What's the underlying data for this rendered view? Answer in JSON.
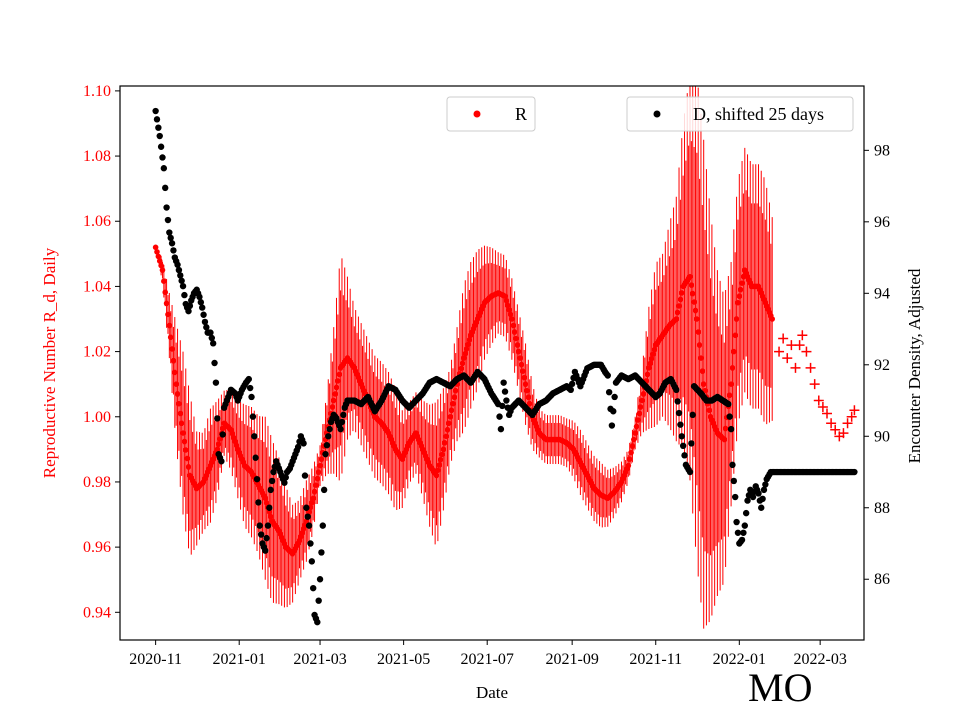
{
  "chart_data": {
    "type": "scatter",
    "xlabel": "Date",
    "y_left_label": "Reproductive Number R_d, Daily",
    "y_right_label": "Encounter Density, Adjusted",
    "annotation": "MO",
    "colors": {
      "R": "#ff0000",
      "D": "#000000"
    },
    "x_ticks": [
      "2020-11",
      "2021-01",
      "2021-03",
      "2021-05",
      "2021-07",
      "2021-09",
      "2021-11",
      "2022-01",
      "2022-03"
    ],
    "x_tick_days": [
      0,
      61,
      120,
      181,
      242,
      304,
      365,
      426,
      485
    ],
    "x_range_days": [
      -26,
      517
    ],
    "y_left_ticks": [
      "0.94",
      "0.96",
      "0.98",
      "1.00",
      "1.02",
      "1.04",
      "1.06",
      "1.08",
      "1.10"
    ],
    "y_left_range": [
      0.9315,
      1.1015
    ],
    "y_right_ticks": [
      "86",
      "88",
      "90",
      "92",
      "94",
      "96",
      "98"
    ],
    "y_right_range": [
      84.3,
      99.8
    ],
    "legend": {
      "R_label": "R",
      "D_label": "D, shifted 25 days"
    },
    "series": [
      {
        "name": "R",
        "axis": "left",
        "marker": "dot",
        "error_bars": true,
        "points": [
          [
            0,
            1.052,
            0
          ],
          [
            5,
            1.045,
            0.003
          ],
          [
            10,
            1.028,
            0.008
          ],
          [
            15,
            1.01,
            0.015
          ],
          [
            20,
            0.995,
            0.02
          ],
          [
            25,
            0.982,
            0.02
          ],
          [
            30,
            0.978,
            0.014
          ],
          [
            35,
            0.98,
            0.012
          ],
          [
            40,
            0.985,
            0.014
          ],
          [
            45,
            0.99,
            0.012
          ],
          [
            50,
            0.998,
            0.008
          ],
          [
            55,
            0.996,
            0.01
          ],
          [
            60,
            0.99,
            0.012
          ],
          [
            65,
            0.985,
            0.015
          ],
          [
            70,
            0.983,
            0.016
          ],
          [
            75,
            0.979,
            0.017
          ],
          [
            80,
            0.975,
            0.02
          ],
          [
            85,
            0.968,
            0.02
          ],
          [
            90,
            0.965,
            0.018
          ],
          [
            95,
            0.96,
            0.015
          ],
          [
            100,
            0.958,
            0.012
          ],
          [
            105,
            0.962,
            0.01
          ],
          [
            110,
            0.968,
            0.01
          ],
          [
            115,
            0.975,
            0.008
          ],
          [
            120,
            0.985,
            0.005
          ],
          [
            125,
            0.995,
            0.01
          ],
          [
            130,
            1.005,
            0.018
          ],
          [
            135,
            1.015,
            0.028
          ],
          [
            140,
            1.018,
            0.02
          ],
          [
            145,
            1.015,
            0.015
          ],
          [
            150,
            1.01,
            0.015
          ],
          [
            155,
            1.005,
            0.015
          ],
          [
            160,
            1.0,
            0.015
          ],
          [
            165,
            0.998,
            0.015
          ],
          [
            170,
            0.995,
            0.015
          ],
          [
            175,
            0.99,
            0.015
          ],
          [
            180,
            0.987,
            0.012
          ],
          [
            185,
            0.992,
            0.01
          ],
          [
            190,
            0.995,
            0.01
          ],
          [
            195,
            0.99,
            0.012
          ],
          [
            200,
            0.985,
            0.015
          ],
          [
            205,
            0.982,
            0.018
          ],
          [
            210,
            0.99,
            0.015
          ],
          [
            215,
            1.0,
            0.012
          ],
          [
            220,
            1.01,
            0.014
          ],
          [
            225,
            1.018,
            0.018
          ],
          [
            230,
            1.025,
            0.018
          ],
          [
            235,
            1.03,
            0.017
          ],
          [
            240,
            1.035,
            0.014
          ],
          [
            245,
            1.037,
            0.012
          ],
          [
            250,
            1.038,
            0.01
          ],
          [
            255,
            1.037,
            0.01
          ],
          [
            260,
            1.03,
            0.01
          ],
          [
            265,
            1.02,
            0.01
          ],
          [
            270,
            1.01,
            0.01
          ],
          [
            275,
            1.0,
            0.008
          ],
          [
            280,
            0.995,
            0.006
          ],
          [
            285,
            0.993,
            0.006
          ],
          [
            290,
            0.993,
            0.006
          ],
          [
            295,
            0.993,
            0.006
          ],
          [
            300,
            0.992,
            0.006
          ],
          [
            305,
            0.99,
            0.007
          ],
          [
            310,
            0.986,
            0.008
          ],
          [
            315,
            0.982,
            0.008
          ],
          [
            320,
            0.978,
            0.008
          ],
          [
            325,
            0.976,
            0.008
          ],
          [
            330,
            0.975,
            0.007
          ],
          [
            335,
            0.977,
            0.006
          ],
          [
            340,
            0.98,
            0.005
          ],
          [
            345,
            0.985,
            0.004
          ],
          [
            350,
            0.995,
            0.004
          ],
          [
            355,
            1.005,
            0.008
          ],
          [
            360,
            1.015,
            0.015
          ],
          [
            365,
            1.022,
            0.02
          ],
          [
            370,
            1.025,
            0.02
          ],
          [
            375,
            1.028,
            0.025
          ],
          [
            380,
            1.03,
            0.03
          ],
          [
            385,
            1.04,
            0.04
          ],
          [
            390,
            1.043,
            0.05
          ],
          [
            395,
            1.03,
            0.06
          ],
          [
            400,
            1.01,
            0.06
          ],
          [
            405,
            1.0,
            0.05
          ],
          [
            410,
            0.995,
            0.04
          ],
          [
            415,
            0.993,
            0.035
          ],
          [
            420,
            1.01,
            0.03
          ],
          [
            425,
            1.035,
            0.03
          ],
          [
            430,
            1.045,
            0.03
          ],
          [
            435,
            1.04,
            0.03
          ],
          [
            440,
            1.04,
            0.03
          ],
          [
            445,
            1.035,
            0.03
          ],
          [
            450,
            1.03,
            0.025
          ]
        ],
        "plus_points": [
          [
            455,
            1.02
          ],
          [
            458,
            1.024
          ],
          [
            461,
            1.018
          ],
          [
            464,
            1.022
          ],
          [
            467,
            1.015
          ],
          [
            470,
            1.022
          ],
          [
            472,
            1.025
          ],
          [
            475,
            1.02
          ],
          [
            478,
            1.015
          ],
          [
            481,
            1.01
          ],
          [
            484,
            1.005
          ],
          [
            487,
            1.003
          ],
          [
            490,
            1.001
          ],
          [
            493,
            0.998
          ],
          [
            496,
            0.996
          ],
          [
            499,
            0.994
          ],
          [
            502,
            0.995
          ],
          [
            505,
            0.998
          ],
          [
            508,
            1.0
          ],
          [
            510,
            1.002
          ]
        ]
      },
      {
        "name": "D, shifted 25 days",
        "axis": "right",
        "marker": "dot",
        "points": [
          [
            0,
            99.1
          ],
          [
            3,
            98.4
          ],
          [
            6,
            97.5
          ],
          [
            8,
            96.4
          ],
          [
            10,
            95.7
          ],
          [
            12,
            95.4
          ],
          [
            14,
            95.0
          ],
          [
            16,
            94.8
          ],
          [
            18,
            94.5
          ],
          [
            20,
            94.2
          ],
          [
            22,
            93.7
          ],
          [
            24,
            93.5
          ],
          [
            26,
            93.8
          ],
          [
            28,
            94.0
          ],
          [
            30,
            94.1
          ],
          [
            32,
            93.9
          ],
          [
            34,
            93.6
          ],
          [
            36,
            93.2
          ],
          [
            38,
            92.9
          ],
          [
            40,
            92.9
          ],
          [
            42,
            92.6
          ],
          [
            44,
            91.5
          ],
          [
            46,
            89.5
          ],
          [
            48,
            89.3
          ],
          [
            50,
            90.8
          ],
          [
            52,
            91.0
          ],
          [
            55,
            91.3
          ],
          [
            58,
            91.2
          ],
          [
            60,
            91.0
          ],
          [
            63,
            91.3
          ],
          [
            66,
            91.5
          ],
          [
            68,
            91.6
          ],
          [
            70,
            91.1
          ],
          [
            72,
            90.0
          ],
          [
            74,
            88.8
          ],
          [
            76,
            87.5
          ],
          [
            78,
            87.0
          ],
          [
            80,
            86.8
          ],
          [
            82,
            87.5
          ],
          [
            84,
            88.5
          ],
          [
            86,
            89.0
          ],
          [
            88,
            89.3
          ],
          [
            90,
            89.1
          ],
          [
            92,
            88.9
          ],
          [
            94,
            88.7
          ],
          [
            96,
            89.0
          ],
          [
            98,
            89.1
          ],
          [
            100,
            89.3
          ],
          [
            102,
            89.5
          ],
          [
            104,
            89.7
          ],
          [
            106,
            90.0
          ],
          [
            108,
            89.8
          ],
          [
            110,
            88.0
          ],
          [
            112,
            87.5
          ],
          [
            114,
            86.5
          ],
          [
            116,
            85.0
          ],
          [
            118,
            84.8
          ],
          [
            120,
            86.0
          ],
          [
            122,
            87.5
          ],
          [
            124,
            89.5
          ],
          [
            126,
            90.0
          ],
          [
            128,
            90.4
          ],
          [
            130,
            90.6
          ],
          [
            132,
            90.5
          ],
          [
            135,
            90.2
          ],
          [
            138,
            90.8
          ],
          [
            140,
            91.0
          ],
          [
            145,
            91.0
          ],
          [
            150,
            90.9
          ],
          [
            155,
            91.1
          ],
          [
            160,
            90.7
          ],
          [
            165,
            91.0
          ],
          [
            170,
            91.4
          ],
          [
            175,
            91.3
          ],
          [
            180,
            91.0
          ],
          [
            185,
            90.8
          ],
          [
            190,
            91.0
          ],
          [
            195,
            91.2
          ],
          [
            200,
            91.5
          ],
          [
            205,
            91.6
          ],
          [
            210,
            91.5
          ],
          [
            215,
            91.4
          ],
          [
            220,
            91.6
          ],
          [
            225,
            91.7
          ],
          [
            230,
            91.5
          ],
          [
            235,
            91.8
          ],
          [
            240,
            91.6
          ],
          [
            245,
            91.2
          ],
          [
            250,
            90.9
          ],
          [
            252,
            90.2
          ],
          [
            254,
            91.5
          ],
          [
            256,
            91.0
          ],
          [
            258,
            90.6
          ],
          [
            260,
            90.8
          ],
          [
            265,
            91.0
          ],
          [
            270,
            90.8
          ],
          [
            275,
            90.6
          ],
          [
            280,
            90.9
          ],
          [
            285,
            91.0
          ],
          [
            290,
            91.2
          ],
          [
            295,
            91.3
          ],
          [
            300,
            91.4
          ],
          [
            303,
            91.3
          ],
          [
            306,
            91.8
          ],
          [
            310,
            91.4
          ],
          [
            315,
            91.9
          ],
          [
            320,
            92.0
          ],
          [
            325,
            92.0
          ],
          [
            328,
            91.8
          ],
          [
            330,
            91.7
          ],
          [
            333,
            90.3
          ],
          [
            336,
            91.5
          ],
          [
            340,
            91.7
          ],
          [
            345,
            91.6
          ],
          [
            350,
            91.7
          ],
          [
            355,
            91.5
          ],
          [
            360,
            91.3
          ],
          [
            365,
            91.1
          ],
          [
            368,
            91.2
          ],
          [
            372,
            91.5
          ],
          [
            376,
            91.6
          ],
          [
            380,
            91.3
          ],
          [
            384,
            90.0
          ],
          [
            387,
            89.2
          ],
          [
            390,
            89.0
          ],
          [
            393,
            91.4
          ],
          [
            398,
            91.2
          ],
          [
            402,
            91.0
          ],
          [
            406,
            91.0
          ],
          [
            410,
            91.1
          ],
          [
            414,
            91.0
          ],
          [
            418,
            90.9
          ],
          [
            420,
            90.2
          ],
          [
            421,
            89.2
          ],
          [
            423,
            88.3
          ],
          [
            424,
            87.6
          ],
          [
            425,
            87.3
          ],
          [
            426,
            87.0
          ],
          [
            428,
            87.1
          ],
          [
            430,
            87.5
          ],
          [
            432,
            88.2
          ],
          [
            434,
            88.5
          ],
          [
            436,
            88.3
          ],
          [
            438,
            88.6
          ],
          [
            440,
            88.4
          ],
          [
            442,
            88.0
          ],
          [
            444,
            88.5
          ],
          [
            446,
            88.8
          ],
          [
            449,
            89.0
          ],
          [
            455,
            89.0
          ],
          [
            460,
            89.0
          ],
          [
            465,
            89.0
          ],
          [
            470,
            89.0
          ],
          [
            475,
            89.0
          ],
          [
            480,
            89.0
          ],
          [
            485,
            89.0
          ],
          [
            490,
            89.0
          ],
          [
            495,
            89.0
          ],
          [
            500,
            89.0
          ],
          [
            505,
            89.0
          ],
          [
            510,
            89.0
          ]
        ]
      }
    ]
  }
}
